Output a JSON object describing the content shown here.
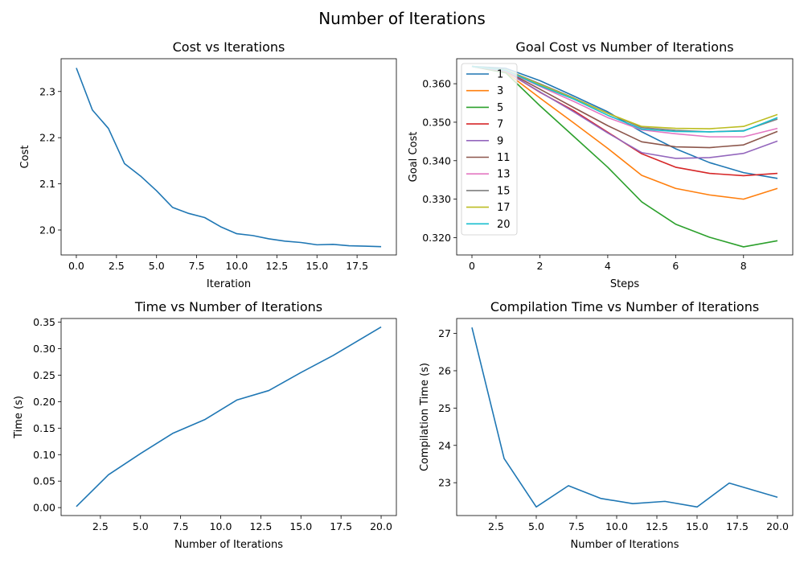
{
  "figure": {
    "title": "Number of Iterations"
  },
  "colors": [
    "#1f77b4",
    "#ff7f0e",
    "#2ca02c",
    "#d62728",
    "#9467bd",
    "#8c564b",
    "#e377c2",
    "#7f7f7f",
    "#bcbd22",
    "#17becf"
  ],
  "chart_data": [
    {
      "type": "line",
      "title": "Cost vs Iterations",
      "xlabel": "Iteration",
      "ylabel": "Cost",
      "xlim": [
        -0.95,
        19.95
      ],
      "ylim": [
        1.946,
        2.371
      ],
      "xticks": [
        0,
        2.5,
        5,
        7.5,
        10,
        12.5,
        15,
        17.5
      ],
      "xticklabels": [
        "0.0",
        "2.5",
        "5.0",
        "7.5",
        "10.0",
        "12.5",
        "15.0",
        "17.5"
      ],
      "yticks": [
        2.0,
        2.1,
        2.2,
        2.3
      ],
      "yticklabels": [
        "2.0",
        "2.1",
        "2.2",
        "2.3"
      ],
      "grid": false,
      "series": [
        {
          "x": [
            0,
            1,
            2,
            3,
            4,
            5,
            6,
            7,
            8,
            9,
            10,
            11,
            12,
            13,
            14,
            15,
            16,
            17,
            18,
            19
          ],
          "y": [
            2.351,
            2.26,
            2.22,
            2.144,
            2.117,
            2.085,
            2.049,
            2.036,
            2.027,
            2.007,
            1.992,
            1.988,
            1.981,
            1.976,
            1.973,
            1.968,
            1.969,
            1.966,
            1.965,
            1.964
          ]
        }
      ]
    },
    {
      "type": "line",
      "title": "Goal Cost vs Number of Iterations",
      "xlabel": "Steps",
      "ylabel": "Goal Cost",
      "xlim": [
        -0.45,
        9.45
      ],
      "ylim": [
        0.3155,
        0.3665
      ],
      "xticks": [
        0,
        2,
        4,
        6,
        8
      ],
      "xticklabels": [
        "0",
        "2",
        "4",
        "6",
        "8"
      ],
      "yticks": [
        0.32,
        0.33,
        0.34,
        0.35,
        0.36
      ],
      "yticklabels": [
        "0.320",
        "0.330",
        "0.340",
        "0.350",
        "0.360"
      ],
      "grid": false,
      "legend": "upper-left",
      "x": [
        0,
        1,
        2,
        3,
        4,
        5,
        6,
        7,
        8,
        9
      ],
      "series": [
        {
          "name": "1",
          "values": [
            0.3645,
            0.364,
            0.3608,
            0.3568,
            0.3527,
            0.3475,
            0.3431,
            0.3395,
            0.3369,
            0.3354
          ]
        },
        {
          "name": "3",
          "values": [
            0.3645,
            0.363,
            0.3563,
            0.3498,
            0.3432,
            0.3362,
            0.3328,
            0.3311,
            0.33,
            0.3328
          ]
        },
        {
          "name": "5",
          "values": [
            0.3645,
            0.3628,
            0.3543,
            0.3463,
            0.3383,
            0.3293,
            0.3235,
            0.3201,
            0.3176,
            0.3192
          ]
        },
        {
          "name": "7",
          "values": [
            0.3645,
            0.3632,
            0.3578,
            0.353,
            0.3474,
            0.3418,
            0.3383,
            0.3367,
            0.3361,
            0.3367
          ]
        },
        {
          "name": "9",
          "values": [
            0.3645,
            0.3632,
            0.3579,
            0.3527,
            0.3472,
            0.3421,
            0.3406,
            0.3408,
            0.3419,
            0.3451
          ]
        },
        {
          "name": "11",
          "values": [
            0.3645,
            0.3633,
            0.3586,
            0.3538,
            0.3491,
            0.3449,
            0.3436,
            0.3434,
            0.3441,
            0.3476
          ]
        },
        {
          "name": "13",
          "values": [
            0.3645,
            0.3634,
            0.3593,
            0.3554,
            0.3512,
            0.348,
            0.347,
            0.3462,
            0.3462,
            0.3484
          ]
        },
        {
          "name": "15",
          "values": [
            0.3645,
            0.3636,
            0.36,
            0.3563,
            0.3523,
            0.3486,
            0.3479,
            0.3475,
            0.3478,
            0.3508
          ]
        },
        {
          "name": "17",
          "values": [
            0.3645,
            0.3636,
            0.3598,
            0.3562,
            0.3523,
            0.3489,
            0.3484,
            0.3483,
            0.3489,
            0.352
          ]
        },
        {
          "name": "20",
          "values": [
            0.3645,
            0.3635,
            0.3595,
            0.356,
            0.3518,
            0.3482,
            0.3476,
            0.3475,
            0.3477,
            0.3512
          ]
        }
      ]
    },
    {
      "type": "line",
      "title": "Time vs Number of Iterations",
      "xlabel": "Number of Iterations",
      "ylabel": "Time (s)",
      "xlim": [
        0.05,
        20.95
      ],
      "ylim": [
        -0.015,
        0.357
      ],
      "xticks": [
        2.5,
        5,
        7.5,
        10,
        12.5,
        15,
        17.5,
        20
      ],
      "xticklabels": [
        "2.5",
        "5.0",
        "7.5",
        "10.0",
        "12.5",
        "15.0",
        "17.5",
        "20.0"
      ],
      "yticks": [
        0,
        0.05,
        0.1,
        0.15,
        0.2,
        0.25,
        0.3,
        0.35
      ],
      "yticklabels": [
        "0.00",
        "0.05",
        "0.10",
        "0.15",
        "0.20",
        "0.25",
        "0.30",
        "0.35"
      ],
      "grid": false,
      "series": [
        {
          "x": [
            1,
            3,
            5,
            7,
            9,
            11,
            13,
            15,
            17,
            20
          ],
          "y": [
            0.002,
            0.062,
            0.102,
            0.14,
            0.166,
            0.203,
            0.221,
            0.255,
            0.287,
            0.341
          ]
        }
      ]
    },
    {
      "type": "line",
      "title": "Compilation Time vs Number of Iterations",
      "xlabel": "Number of Iterations",
      "ylabel": "Compilation Time (s)",
      "xlim": [
        0.05,
        20.95
      ],
      "ylim": [
        22.12,
        27.4
      ],
      "xticks": [
        2.5,
        5,
        7.5,
        10,
        12.5,
        15,
        17.5,
        20
      ],
      "xticklabels": [
        "2.5",
        "5.0",
        "7.5",
        "10.0",
        "12.5",
        "15.0",
        "17.5",
        "20.0"
      ],
      "yticks": [
        23,
        24,
        25,
        26,
        27
      ],
      "yticklabels": [
        "23",
        "24",
        "25",
        "26",
        "27"
      ],
      "grid": false,
      "series": [
        {
          "x": [
            1,
            3,
            5,
            7,
            9,
            11,
            13,
            15,
            17,
            20
          ],
          "y": [
            27.16,
            23.65,
            22.35,
            22.92,
            22.58,
            22.44,
            22.5,
            22.35,
            22.99,
            22.61
          ]
        }
      ]
    }
  ]
}
